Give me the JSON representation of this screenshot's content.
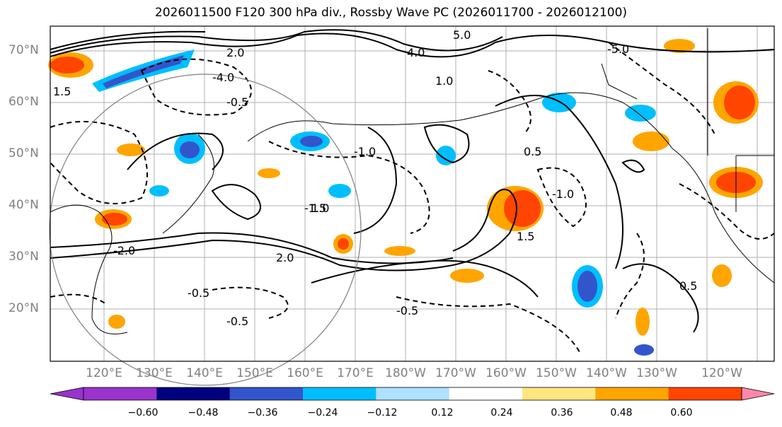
{
  "title": "2026011500 F120 300 hPa div., Rossby Wave PC (2026011700 - 2026012100)",
  "latitude_labels": [
    "70°N",
    "60°N",
    "50°N",
    "40°N",
    "30°N",
    "20°N"
  ],
  "longitude_labels": [
    "120°E",
    "130°E",
    "140°E",
    "150°E",
    "160°E",
    "170°E",
    "180°W",
    "170°W",
    "160°W",
    "150°W",
    "140°W",
    "130°W",
    "120°W"
  ],
  "colorbar": {
    "tick_labels": [
      "−0.60",
      "−0.48",
      "−0.36",
      "−0.24",
      "−0.12",
      "0.12",
      "0.24",
      "0.36",
      "0.48",
      "0.60"
    ],
    "colors": [
      "#9933cc",
      "#000080",
      "#3355cc",
      "#00bfff",
      "#aee0ff",
      "#ffffff",
      "#ffe680",
      "#ffa500",
      "#ff4500",
      "#b22222",
      "#ff88aa"
    ],
    "under_color": "#9933cc",
    "over_color": "#ff88aa"
  },
  "contour_labels": [
    {
      "text": "5.0"
    },
    {
      "text": "4.0"
    },
    {
      "text": "2.0"
    },
    {
      "text": "1.5"
    },
    {
      "text": "-0.5"
    },
    {
      "text": "1.0"
    },
    {
      "text": "-1.0"
    },
    {
      "text": "-1.5"
    },
    {
      "text": "-2.0"
    },
    {
      "text": "0.5"
    },
    {
      "text": "-4.0"
    },
    {
      "text": "-5.0"
    },
    {
      "text": "2.0"
    },
    {
      "text": "0.5"
    },
    {
      "text": "-0.5"
    },
    {
      "text": "-0.5"
    },
    {
      "text": "1.0"
    },
    {
      "text": "-1.0"
    },
    {
      "text": "1.5"
    },
    {
      "text": "-0.5"
    }
  ],
  "colors": {
    "grid": "#b0b0b0",
    "contour": "#000000",
    "circle": "#808080",
    "coast": "#000000"
  }
}
